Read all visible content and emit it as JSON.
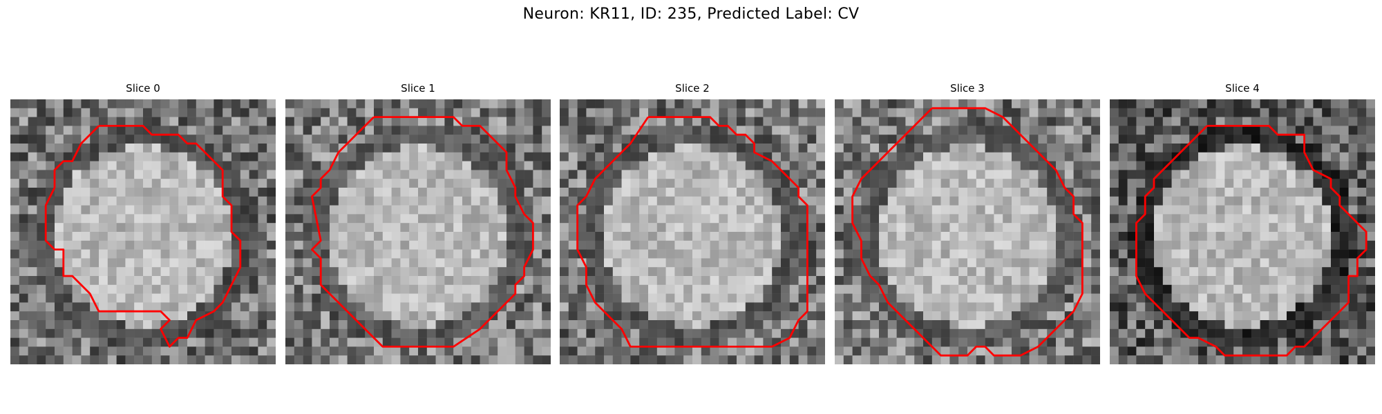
{
  "title": "Neuron: KR11, ID: 235, Predicted Label: CV",
  "panels": [
    {
      "label": "Slice 0",
      "seed": 11,
      "dark": 0.55
    },
    {
      "label": "Slice 1",
      "seed": 23,
      "dark": 0.45
    },
    {
      "label": "Slice 2",
      "seed": 37,
      "dark": 0.5
    },
    {
      "label": "Slice 3",
      "seed": 41,
      "dark": 0.45
    },
    {
      "label": "Slice 4",
      "seed": 53,
      "dark": 0.9
    }
  ],
  "contour_color": "#ff0000"
}
